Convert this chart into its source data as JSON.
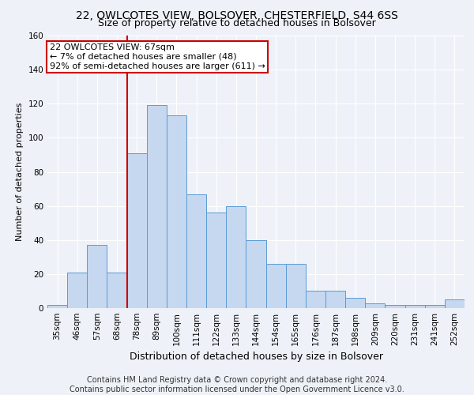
{
  "title1": "22, OWLCOTES VIEW, BOLSOVER, CHESTERFIELD, S44 6SS",
  "title2": "Size of property relative to detached houses in Bolsover",
  "xlabel": "Distribution of detached houses by size in Bolsover",
  "ylabel": "Number of detached properties",
  "categories": [
    "35sqm",
    "46sqm",
    "57sqm",
    "68sqm",
    "78sqm",
    "89sqm",
    "100sqm",
    "111sqm",
    "122sqm",
    "133sqm",
    "144sqm",
    "154sqm",
    "165sqm",
    "176sqm",
    "187sqm",
    "198sqm",
    "209sqm",
    "220sqm",
    "231sqm",
    "241sqm",
    "252sqm"
  ],
  "values": [
    2,
    21,
    37,
    21,
    91,
    119,
    113,
    67,
    56,
    60,
    40,
    26,
    26,
    10,
    10,
    6,
    3,
    2,
    2,
    2,
    5
  ],
  "bar_color": "#c5d8f0",
  "bar_edge_color": "#5b9bd5",
  "vline_color": "#cc0000",
  "annotation_line1": "22 OWLCOTES VIEW: 67sqm",
  "annotation_line2": "← 7% of detached houses are smaller (48)",
  "annotation_line3": "92% of semi-detached houses are larger (611) →",
  "annotation_box_color": "#ffffff",
  "annotation_box_edge_color": "#cc0000",
  "ylim": [
    0,
    160
  ],
  "yticks": [
    0,
    20,
    40,
    60,
    80,
    100,
    120,
    140,
    160
  ],
  "footer1": "Contains HM Land Registry data © Crown copyright and database right 2024.",
  "footer2": "Contains public sector information licensed under the Open Government Licence v3.0.",
  "background_color": "#eef2f8",
  "grid_color": "#ffffff",
  "title1_fontsize": 10,
  "title2_fontsize": 9,
  "xlabel_fontsize": 9,
  "ylabel_fontsize": 8,
  "tick_fontsize": 7.5,
  "footer_fontsize": 7,
  "annot_fontsize": 8
}
